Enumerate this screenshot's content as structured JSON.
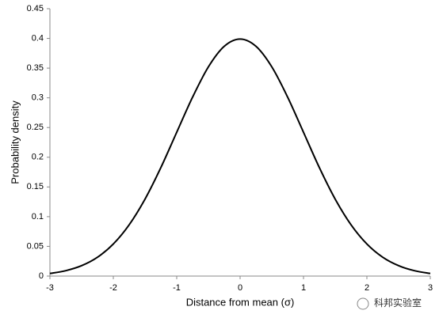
{
  "chart_data": {
    "type": "line",
    "x_label": "Distance from mean (σ)",
    "y_label": "Probability density",
    "x": [
      -3,
      -2.75,
      -2.5,
      -2.25,
      -2,
      -1.75,
      -1.5,
      -1.25,
      -1,
      -0.75,
      -0.5,
      -0.25,
      0,
      0.25,
      0.5,
      0.75,
      1,
      1.25,
      1.5,
      1.75,
      2,
      2.25,
      2.5,
      2.75,
      3
    ],
    "series": [
      {
        "color": "#000000",
        "values": [
          0.0044,
          0.0091,
          0.0175,
          0.0317,
          0.054,
          0.0863,
          0.1295,
          0.1826,
          0.242,
          0.3011,
          0.3521,
          0.3867,
          0.3989,
          0.3867,
          0.3521,
          0.3011,
          0.242,
          0.1826,
          0.1295,
          0.0863,
          0.054,
          0.0317,
          0.0175,
          0.0091,
          0.0044
        ]
      }
    ],
    "xlim": [
      -3,
      3
    ],
    "xticks": [
      -3,
      -2,
      -1,
      0,
      1,
      2,
      3
    ],
    "ylim": [
      0,
      0.45
    ],
    "yticks": [
      0,
      0.05,
      0.1,
      0.15,
      0.2,
      0.25,
      0.3,
      0.35,
      0.4,
      0.45
    ],
    "grid": false,
    "watermark": "科邦实验室"
  }
}
